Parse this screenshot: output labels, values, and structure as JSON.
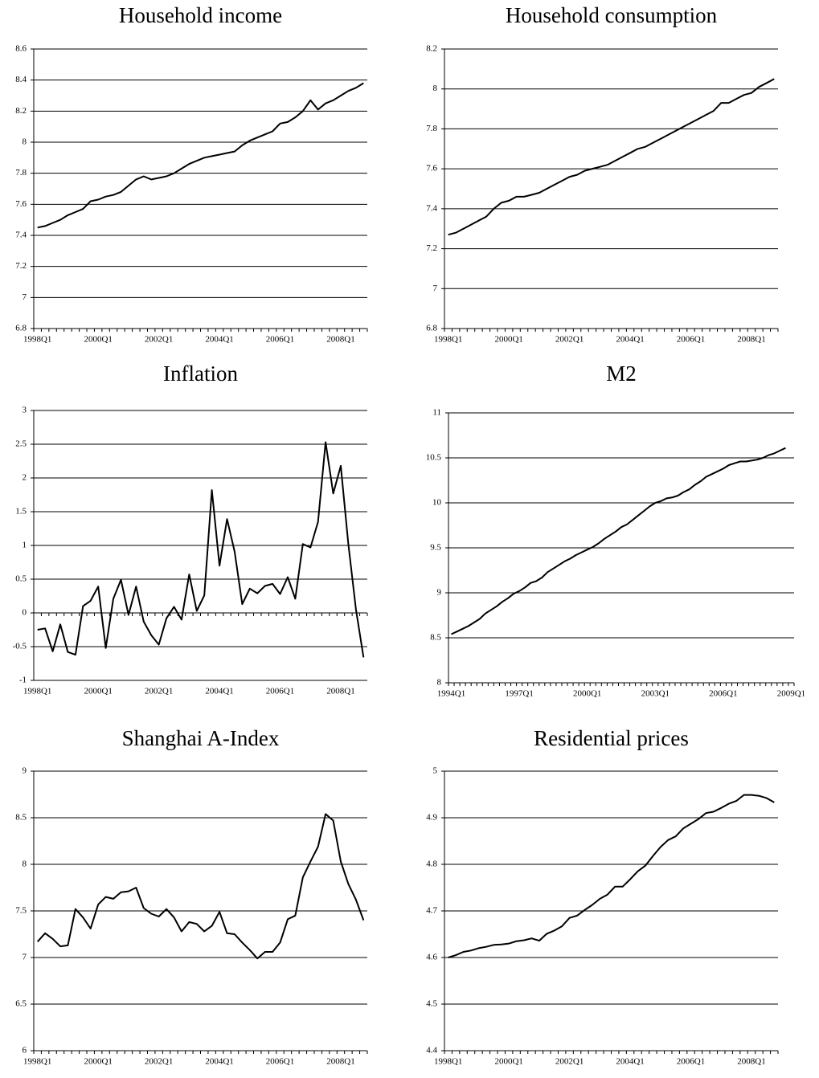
{
  "chart_data": [
    {
      "type": "line",
      "title": "Household income",
      "color": "#000000",
      "grid": true,
      "categories": [
        "1998Q1",
        null,
        null,
        null,
        null,
        null,
        null,
        null,
        "2000Q1",
        null,
        null,
        null,
        null,
        null,
        null,
        null,
        "2002Q1",
        null,
        null,
        null,
        null,
        null,
        null,
        null,
        "2004Q1",
        null,
        null,
        null,
        null,
        null,
        null,
        null,
        "2006Q1",
        null,
        null,
        null,
        null,
        null,
        null,
        null,
        "2008Q1",
        null,
        null,
        null
      ],
      "values": [
        7.45,
        7.46,
        7.48,
        7.5,
        7.53,
        7.55,
        7.57,
        7.62,
        7.63,
        7.65,
        7.66,
        7.68,
        7.72,
        7.76,
        7.78,
        7.76,
        7.77,
        7.78,
        7.8,
        7.83,
        7.86,
        7.88,
        7.9,
        7.91,
        7.92,
        7.93,
        7.94,
        7.98,
        8.01,
        8.03,
        8.05,
        8.07,
        8.12,
        8.13,
        8.16,
        8.2,
        8.27,
        8.21,
        8.25,
        8.27,
        8.3,
        8.33,
        8.35,
        8.38
      ],
      "ylim": [
        6.8,
        8.6
      ],
      "yticks": [
        6.8,
        7,
        7.2,
        7.4,
        7.6,
        7.8,
        8,
        8.2,
        8.4,
        8.6
      ]
    },
    {
      "type": "line",
      "title": "Household consumption",
      "color": "#000000",
      "grid": true,
      "categories": [
        "1998Q1",
        null,
        null,
        null,
        null,
        null,
        null,
        null,
        "2000Q1",
        null,
        null,
        null,
        null,
        null,
        null,
        null,
        "2002Q1",
        null,
        null,
        null,
        null,
        null,
        null,
        null,
        "2004Q1",
        null,
        null,
        null,
        null,
        null,
        null,
        null,
        "2006Q1",
        null,
        null,
        null,
        null,
        null,
        null,
        null,
        "2008Q1",
        null,
        null,
        null
      ],
      "values": [
        7.27,
        7.28,
        7.3,
        7.32,
        7.34,
        7.36,
        7.4,
        7.43,
        7.44,
        7.46,
        7.46,
        7.47,
        7.48,
        7.5,
        7.52,
        7.54,
        7.56,
        7.57,
        7.59,
        7.6,
        7.61,
        7.62,
        7.64,
        7.66,
        7.68,
        7.7,
        7.71,
        7.73,
        7.75,
        7.77,
        7.79,
        7.81,
        7.83,
        7.85,
        7.87,
        7.89,
        7.93,
        7.93,
        7.95,
        7.97,
        7.98,
        8.01,
        8.03,
        8.05
      ],
      "ylim": [
        6.8,
        8.2
      ],
      "yticks": [
        6.8,
        7,
        7.2,
        7.4,
        7.6,
        7.8,
        8,
        8.2
      ]
    },
    {
      "type": "line",
      "title": "Inflation",
      "color": "#000000",
      "grid": true,
      "categories": [
        "1998Q1",
        null,
        null,
        null,
        null,
        null,
        null,
        null,
        "2000Q1",
        null,
        null,
        null,
        null,
        null,
        null,
        null,
        "2002Q1",
        null,
        null,
        null,
        null,
        null,
        null,
        null,
        "2004Q1",
        null,
        null,
        null,
        null,
        null,
        null,
        null,
        "2006Q1",
        null,
        null,
        null,
        null,
        null,
        null,
        null,
        "2008Q1",
        null,
        null,
        null
      ],
      "values": [
        -0.25,
        -0.23,
        -0.57,
        -0.17,
        -0.58,
        -0.62,
        0.1,
        0.18,
        0.39,
        -0.52,
        0.21,
        0.49,
        -0.03,
        0.39,
        -0.13,
        -0.33,
        -0.47,
        -0.08,
        0.09,
        -0.1,
        0.57,
        0.03,
        0.26,
        1.82,
        0.7,
        1.39,
        0.91,
        0.13,
        0.36,
        0.29,
        0.4,
        0.43,
        0.28,
        0.53,
        0.21,
        1.02,
        0.97,
        1.35,
        2.53,
        1.77,
        2.18,
        1.02,
        0.05,
        -0.66
      ],
      "ylim": [
        -1,
        3
      ],
      "yticks": [
        -1,
        -0.5,
        0,
        0.5,
        1,
        1.5,
        2,
        2.5,
        3
      ]
    },
    {
      "type": "line",
      "title": "M2",
      "color": "#000000",
      "grid": true,
      "categories": [
        "1994Q1",
        null,
        null,
        null,
        null,
        null,
        null,
        null,
        null,
        null,
        null,
        null,
        "1997Q1",
        null,
        null,
        null,
        null,
        null,
        null,
        null,
        null,
        null,
        null,
        null,
        "2000Q1",
        null,
        null,
        null,
        null,
        null,
        null,
        null,
        null,
        null,
        null,
        null,
        "2003Q1",
        null,
        null,
        null,
        null,
        null,
        null,
        null,
        null,
        null,
        null,
        null,
        "2006Q1",
        null,
        null,
        null,
        null,
        null,
        null,
        null,
        null,
        null,
        null,
        null,
        "2009Q1"
      ],
      "values": [
        8.54,
        8.57,
        8.6,
        8.63,
        8.67,
        8.71,
        8.77,
        8.81,
        8.85,
        8.9,
        8.94,
        8.99,
        9.02,
        9.06,
        9.11,
        9.13,
        9.17,
        9.23,
        9.27,
        9.31,
        9.35,
        9.38,
        9.42,
        9.45,
        9.48,
        9.51,
        9.55,
        9.6,
        9.64,
        9.68,
        9.73,
        9.76,
        9.81,
        9.86,
        9.91,
        9.96,
        10.0,
        10.02,
        10.05,
        10.06,
        10.08,
        10.12,
        10.15,
        10.2,
        10.24,
        10.29,
        10.32,
        10.35,
        10.38,
        10.42,
        10.44,
        10.46,
        10.46,
        10.47,
        10.48,
        10.5,
        10.53,
        10.55,
        10.58,
        10.61,
        null
      ],
      "ylim": [
        8,
        11
      ],
      "yticks": [
        8,
        8.5,
        9,
        9.5,
        10,
        10.5,
        11
      ]
    },
    {
      "type": "line",
      "title": "Shanghai A-Index",
      "color": "#000000",
      "grid": true,
      "categories": [
        "1998Q1",
        null,
        null,
        null,
        null,
        null,
        null,
        null,
        "2000Q1",
        null,
        null,
        null,
        null,
        null,
        null,
        null,
        "2002Q1",
        null,
        null,
        null,
        null,
        null,
        null,
        null,
        "2004Q1",
        null,
        null,
        null,
        null,
        null,
        null,
        null,
        "2006Q1",
        null,
        null,
        null,
        null,
        null,
        null,
        null,
        "2008Q1",
        null,
        null,
        null
      ],
      "values": [
        7.17,
        7.26,
        7.2,
        7.12,
        7.13,
        7.52,
        7.43,
        7.31,
        7.57,
        7.65,
        7.63,
        7.7,
        7.71,
        7.75,
        7.53,
        7.47,
        7.44,
        7.52,
        7.43,
        7.28,
        7.38,
        7.36,
        7.28,
        7.34,
        7.49,
        7.26,
        7.25,
        7.16,
        7.08,
        6.99,
        7.06,
        7.06,
        7.16,
        7.41,
        7.45,
        7.86,
        8.03,
        8.19,
        8.54,
        8.47,
        8.03,
        7.79,
        7.62,
        7.4
      ],
      "ylim": [
        6,
        9
      ],
      "yticks": [
        6,
        6.5,
        7,
        7.5,
        8,
        8.5,
        9
      ]
    },
    {
      "type": "line",
      "title": "Residential prices",
      "color": "#000000",
      "grid": true,
      "categories": [
        "1998Q1",
        null,
        null,
        null,
        null,
        null,
        null,
        null,
        "2000Q1",
        null,
        null,
        null,
        null,
        null,
        null,
        null,
        "2002Q1",
        null,
        null,
        null,
        null,
        null,
        null,
        null,
        "2004Q1",
        null,
        null,
        null,
        null,
        null,
        null,
        null,
        "2006Q1",
        null,
        null,
        null,
        null,
        null,
        null,
        null,
        "2008Q1",
        null,
        null,
        null
      ],
      "values": [
        4.6,
        4.605,
        4.612,
        4.615,
        4.62,
        4.623,
        4.627,
        4.628,
        4.63,
        4.635,
        4.637,
        4.641,
        4.636,
        4.651,
        4.658,
        4.667,
        4.685,
        4.69,
        4.702,
        4.713,
        4.726,
        4.735,
        4.752,
        4.752,
        4.768,
        4.785,
        4.797,
        4.818,
        4.837,
        4.852,
        4.86,
        4.877,
        4.887,
        4.897,
        4.91,
        4.913,
        4.921,
        4.93,
        4.936,
        4.949,
        4.949,
        4.947,
        4.942,
        4.933
      ],
      "ylim": [
        4.4,
        5
      ],
      "yticks": [
        4.4,
        4.5,
        4.6,
        4.7,
        4.8,
        4.9,
        5
      ]
    }
  ]
}
